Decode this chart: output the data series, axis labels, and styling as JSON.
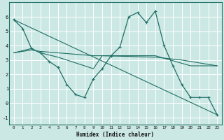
{
  "xlabel": "Humidex (Indice chaleur)",
  "bg_color": "#cce8e4",
  "grid_color": "#ffffff",
  "line_color": "#1e6e65",
  "xlim": [
    -0.5,
    23.5
  ],
  "ylim": [
    -1.5,
    7.0
  ],
  "yticks": [
    -1,
    0,
    1,
    2,
    3,
    4,
    5,
    6
  ],
  "xticks": [
    0,
    1,
    2,
    3,
    4,
    5,
    6,
    7,
    8,
    9,
    10,
    11,
    12,
    13,
    14,
    15,
    16,
    17,
    18,
    19,
    20,
    21,
    22,
    23
  ],
  "series_main": {
    "x": [
      0,
      1,
      2,
      3,
      4,
      5,
      6,
      7,
      8,
      9,
      10,
      11,
      12,
      13,
      14,
      15,
      16,
      17,
      18,
      19,
      20,
      21,
      22,
      23
    ],
    "y": [
      5.8,
      5.2,
      3.8,
      3.5,
      2.9,
      2.5,
      1.3,
      0.6,
      0.4,
      1.7,
      2.4,
      3.3,
      3.9,
      6.0,
      6.3,
      5.6,
      6.4,
      4.0,
      2.6,
      1.3,
      0.4,
      0.4,
      0.4,
      -0.8
    ]
  },
  "series_straight": {
    "x": [
      0,
      23
    ],
    "y": [
      5.8,
      -0.8
    ]
  },
  "series_flat1": {
    "x": [
      0,
      2,
      3,
      9,
      10,
      16,
      19,
      23
    ],
    "y": [
      3.5,
      3.7,
      3.6,
      3.3,
      3.3,
      3.2,
      3.0,
      2.6
    ]
  },
  "series_flat2": {
    "x": [
      0,
      2,
      3,
      5,
      9,
      10,
      16,
      20,
      23
    ],
    "y": [
      3.5,
      3.8,
      3.5,
      3.2,
      2.4,
      3.3,
      3.3,
      2.6,
      2.6
    ]
  }
}
